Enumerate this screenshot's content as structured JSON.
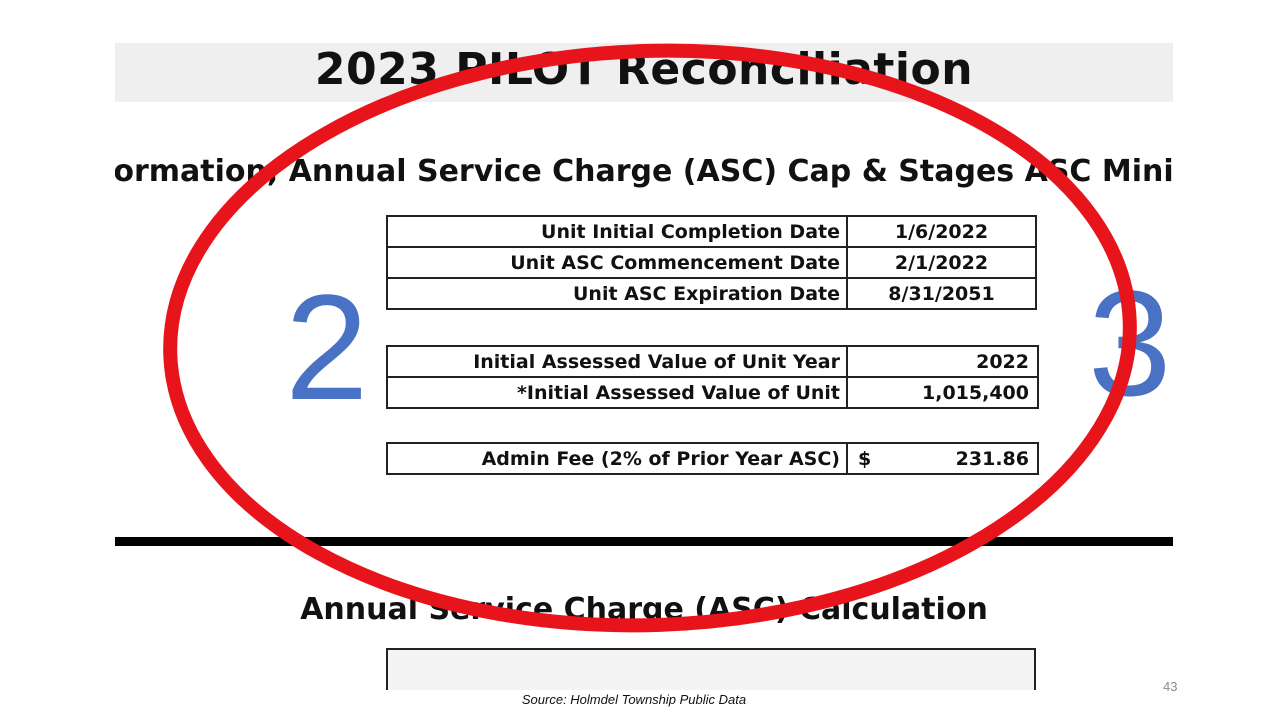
{
  "slide": {
    "title": "2023 PILOT Reconciliation",
    "subtitle": "Unit Information, Annual Service Charge (ASC) Cap & Stages ASC Minimum",
    "section2_title": "Annual Service Charge (ASC) Calculation",
    "page_number": "43",
    "source": "Source: Holmdel Township Public Data"
  },
  "dates": [
    {
      "label": "Unit Initial Completion Date",
      "value": "1/6/2022"
    },
    {
      "label": "Unit ASC Commencement Date",
      "value": "2/1/2022"
    },
    {
      "label": "Unit ASC Expiration Date",
      "value": "8/31/2051"
    }
  ],
  "assessed": [
    {
      "label": "Initial Assessed Value of Unit Year",
      "value": "2022"
    },
    {
      "label": "*Initial Assessed Value of Unit",
      "value": "1,015,400"
    }
  ],
  "admin_fee": {
    "label": "Admin Fee (2% of Prior Year ASC)",
    "currency": "$",
    "value": "231.86"
  },
  "annotations": {
    "left_number": "2",
    "right_number": "3",
    "circle_color": "#e8141c",
    "number_color": "#4a72c4"
  }
}
